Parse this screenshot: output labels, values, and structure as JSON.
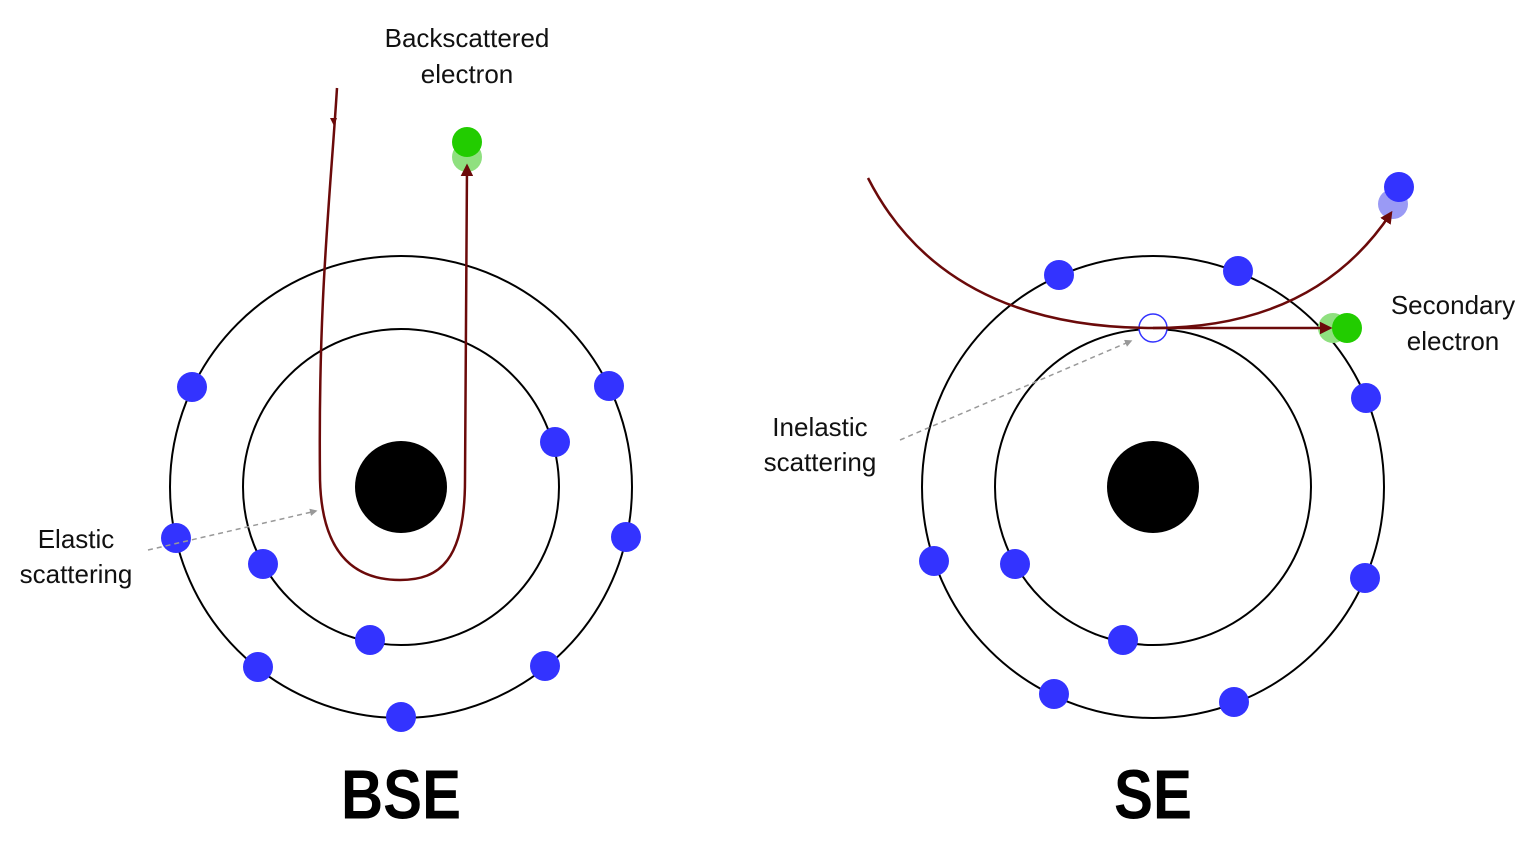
{
  "panels": [
    {
      "title": "BSE",
      "annotations": [
        {
          "lines": [
            "Backscattered",
            "electron"
          ]
        },
        {
          "lines": [
            "Elastic",
            "scattering"
          ]
        }
      ]
    },
    {
      "title": "SE",
      "annotations": [
        {
          "lines": [
            "Inelastic",
            "scattering"
          ]
        },
        {
          "lines": [
            "Secondary",
            "electron"
          ]
        }
      ]
    }
  ]
}
